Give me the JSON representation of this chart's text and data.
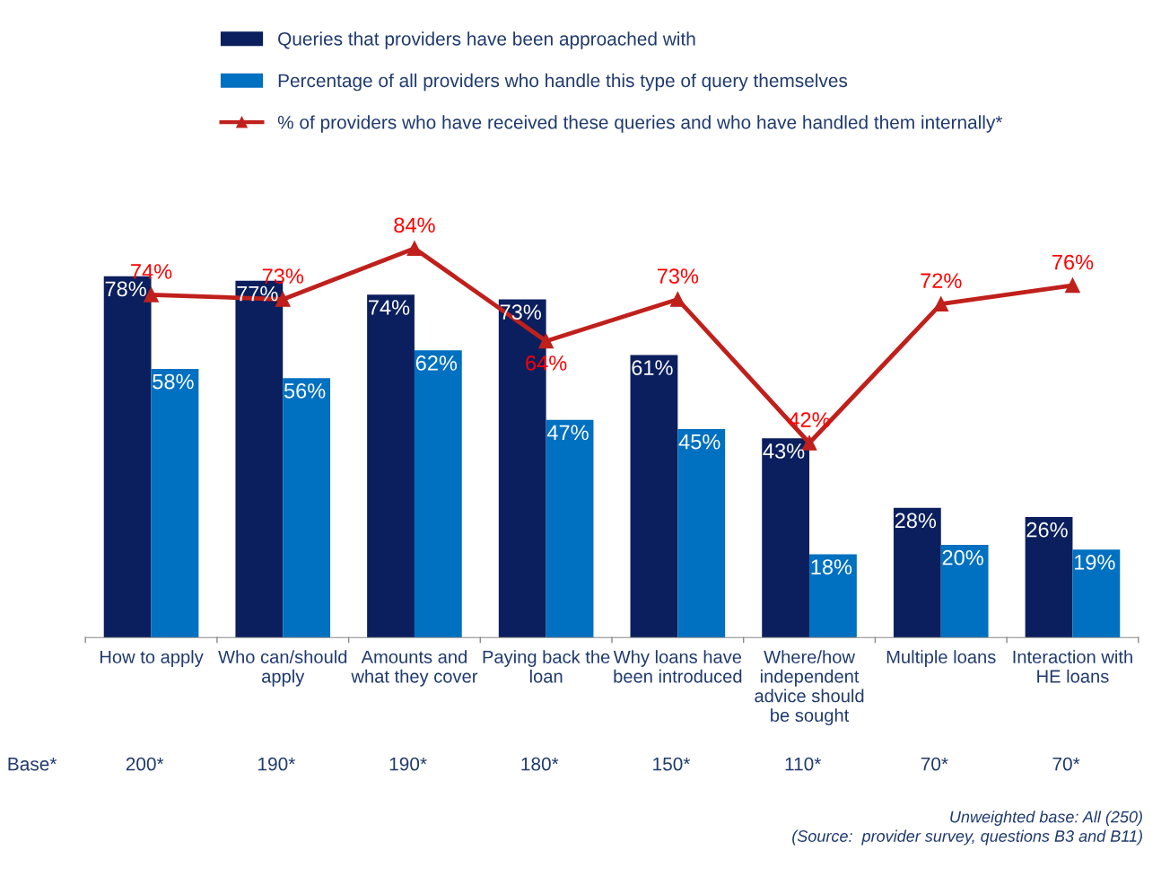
{
  "chart_data": {
    "type": "bar",
    "categories": [
      "How to apply",
      "Who can/should\napply",
      "Amounts and\nwhat they cover",
      "Paying back the\nloan",
      "Why loans have\nbeen introduced",
      "Where/how\nindependent\nadvice should\nbe sought",
      "Multiple loans",
      "Interaction with\nHE loans"
    ],
    "series": [
      {
        "name": "Queries that providers have been approached with",
        "color": "#0b1f5e",
        "values": [
          78,
          77,
          74,
          73,
          61,
          43,
          28,
          26
        ],
        "value_labels": [
          "78%",
          "77%",
          "74%",
          "73%",
          "61%",
          "43%",
          "28%",
          "26%"
        ]
      },
      {
        "name": "Percentage of all providers who handle this type of query themselves",
        "color": "#0070c0",
        "values": [
          58,
          56,
          62,
          47,
          45,
          18,
          20,
          19
        ],
        "value_labels": [
          "58%",
          "56%",
          "62%",
          "47%",
          "45%",
          "18%",
          "20%",
          "19%"
        ]
      },
      {
        "name": "% of providers who have received these queries and who have handled them internally*",
        "type": "line",
        "color": "#c0201c",
        "marker": "triangle",
        "line_style": "solid",
        "values": [
          74,
          73,
          84,
          64,
          73,
          42,
          72,
          76
        ],
        "value_labels": [
          "74%",
          "73%",
          "84%",
          "64%",
          "73%",
          "42%",
          "72%",
          "76%"
        ]
      }
    ],
    "legend": "top",
    "grid": false,
    "annotations": [
      "Base*",
      "200*",
      "190*",
      "190*",
      "180*",
      "150*",
      "110*",
      "70*",
      "70*",
      "Unweighted base: All (250)",
      "(Source:  provider survey, questions B3 and B11)"
    ]
  }
}
